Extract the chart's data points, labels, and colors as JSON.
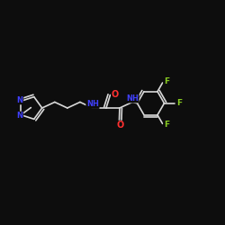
{
  "background_color": "#0d0d0d",
  "bond_color": "#d8d8d8",
  "bond_width": 1.2,
  "atom_colors": {
    "N": "#4040ff",
    "O": "#ff3030",
    "F": "#88cc22",
    "C": "#d8d8d8"
  },
  "figsize": [
    2.5,
    2.5
  ],
  "dpi": 100,
  "xlim": [
    0,
    10
  ],
  "ylim": [
    0,
    10
  ]
}
